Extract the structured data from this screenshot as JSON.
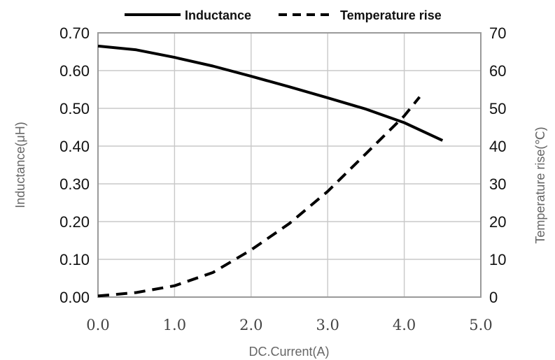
{
  "chart_data": {
    "type": "line",
    "title": "",
    "xlabel": "DC.Current(A)",
    "ylabel_left": "Inductance(μH)",
    "ylabel_right": "Temperature rise(℃)",
    "xlim": [
      0,
      5
    ],
    "ylim_left": [
      0,
      0.7
    ],
    "ylim_right": [
      0,
      70
    ],
    "x_ticks": [
      "0.0",
      "1.0",
      "2.0",
      "3.0",
      "4.0",
      "5.0"
    ],
    "y_left_ticks": [
      "0.00",
      "0.10",
      "0.20",
      "0.30",
      "0.40",
      "0.50",
      "0.60",
      "0.70"
    ],
    "y_right_ticks": [
      "0",
      "10",
      "20",
      "30",
      "40",
      "50",
      "60",
      "70"
    ],
    "grid": true,
    "legend_position": "top",
    "series": [
      {
        "name": "Inductance",
        "axis": "left",
        "style": "solid",
        "color": "#000000",
        "x": [
          0.0,
          0.5,
          1.0,
          1.5,
          2.0,
          2.5,
          3.0,
          3.5,
          4.0,
          4.5
        ],
        "y": [
          0.665,
          0.655,
          0.635,
          0.612,
          0.585,
          0.557,
          0.528,
          0.498,
          0.462,
          0.415
        ]
      },
      {
        "name": "Temperature rise",
        "axis": "right",
        "style": "dashed",
        "color": "#000000",
        "x": [
          0.0,
          0.5,
          1.0,
          1.5,
          2.0,
          2.5,
          3.0,
          3.5,
          4.0,
          4.2
        ],
        "y": [
          0.3,
          1.2,
          3.0,
          6.5,
          12.5,
          19.5,
          28.0,
          38.0,
          48.0,
          53.0
        ]
      }
    ]
  }
}
